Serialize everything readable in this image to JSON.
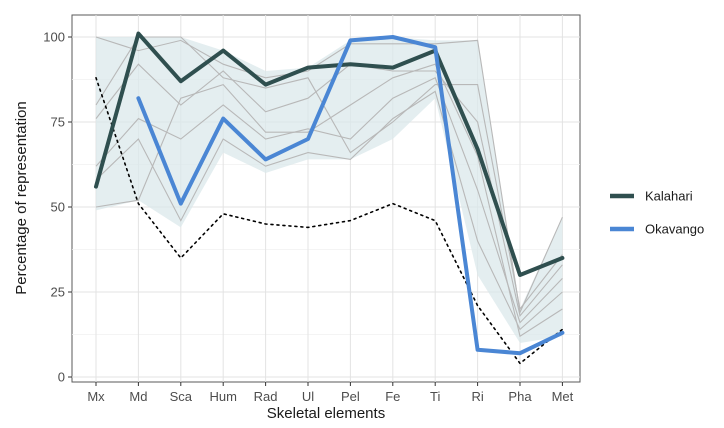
{
  "chart_data": {
    "type": "line",
    "title": "",
    "xlabel": "Skeletal elements",
    "ylabel": "Percentage of representation",
    "categories": [
      "Mx",
      "Md",
      "Sca",
      "Hum",
      "Rad",
      "Ul",
      "Pel",
      "Fe",
      "Ti",
      "Ri",
      "Pha",
      "Met"
    ],
    "ylim": [
      0,
      100
    ],
    "yticks": [
      0,
      25,
      50,
      75,
      100
    ],
    "grid": true,
    "legend_position": "right",
    "series": [
      {
        "name": "Kalahari",
        "color": "#2f4f4f",
        "style": "solid",
        "values": [
          56,
          101,
          87,
          96,
          86,
          91,
          92,
          91,
          96,
          67,
          30,
          35
        ]
      },
      {
        "name": "Okavango",
        "color": "#4a86d4",
        "style": "solid",
        "values": [
          null,
          82,
          51,
          76,
          64,
          70,
          99,
          100,
          97,
          8,
          7,
          13
        ]
      }
    ],
    "reference_line": {
      "style": "dotted",
      "color": "#000000",
      "values": [
        88,
        51,
        35,
        48,
        45,
        44,
        46,
        51,
        46,
        21,
        4,
        14
      ]
    },
    "background_lines": {
      "color": "#b8b8b8",
      "values": [
        [
          100,
          96,
          99,
          92,
          88,
          90,
          98,
          98,
          98,
          99,
          19,
          47
        ],
        [
          80,
          100,
          100,
          88,
          85,
          88,
          66,
          75,
          86,
          86,
          20,
          36
        ],
        [
          76,
          92,
          80,
          90,
          78,
          82,
          92,
          90,
          90,
          75,
          18,
          33
        ],
        [
          62,
          76,
          70,
          80,
          70,
          73,
          70,
          82,
          88,
          55,
          16,
          29
        ],
        [
          58,
          70,
          46,
          70,
          62,
          66,
          64,
          76,
          84,
          40,
          14,
          25
        ],
        [
          50,
          52,
          82,
          86,
          72,
          72,
          80,
          88,
          92,
          65,
          12,
          20
        ]
      ]
    },
    "band": {
      "color": "#dbe8eb",
      "upper": [
        100,
        100,
        100,
        96,
        90,
        91,
        99,
        100,
        99,
        99,
        20,
        47
      ],
      "lower": [
        49,
        52,
        44,
        66,
        60,
        64,
        64,
        70,
        82,
        30,
        10,
        12
      ]
    }
  }
}
